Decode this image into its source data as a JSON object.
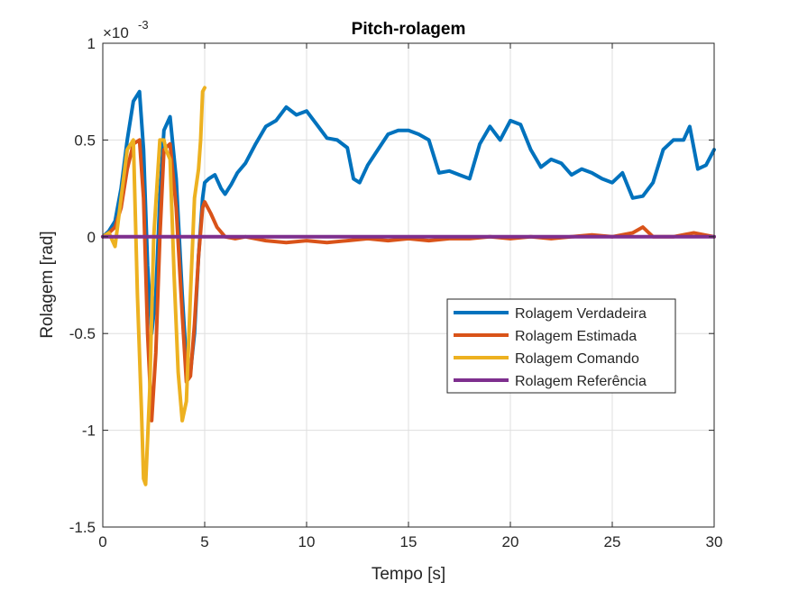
{
  "chart_data": {
    "type": "line",
    "title": "Pitch-rolagem",
    "xlabel": "Tempo [s]",
    "ylabel": "Rolagem [rad]",
    "y_exponent_label": "×10",
    "y_exponent_power": "-3",
    "xlim": [
      0,
      30
    ],
    "ylim": [
      -1.5,
      1
    ],
    "xticks": [
      0,
      5,
      10,
      15,
      20,
      25,
      30
    ],
    "xtick_labels": [
      "0",
      "5",
      "10",
      "15",
      "20",
      "25",
      "30"
    ],
    "yticks": [
      -1.5,
      -1,
      -0.5,
      0,
      0.5,
      1
    ],
    "ytick_labels": [
      "-1.5",
      "-1",
      "-0.5",
      "0",
      "0.5",
      "1"
    ],
    "grid": true,
    "legend_position": "center-right",
    "series": [
      {
        "name": "Rolagem Verdadeira",
        "color": "#0072BD",
        "x": [
          0,
          0.3,
          0.6,
          0.9,
          1.2,
          1.5,
          1.8,
          2.0,
          2.2,
          2.4,
          2.6,
          2.8,
          3.0,
          3.3,
          3.6,
          3.9,
          4.1,
          4.3,
          4.5,
          4.7,
          4.9,
          5.0,
          5.2,
          5.5,
          5.8,
          6.0,
          6.3,
          6.6,
          7.0,
          7.5,
          8.0,
          8.5,
          9.0,
          9.5,
          10.0,
          10.5,
          11.0,
          11.5,
          12.0,
          12.3,
          12.6,
          13.0,
          13.5,
          14.0,
          14.5,
          15.0,
          15.5,
          16.0,
          16.5,
          17.0,
          17.5,
          18.0,
          18.5,
          19.0,
          19.5,
          20.0,
          20.5,
          21.0,
          21.5,
          22.0,
          22.5,
          23.0,
          23.5,
          24.0,
          24.5,
          25.0,
          25.5,
          26.0,
          26.5,
          27.0,
          27.5,
          28.0,
          28.5,
          28.8,
          29.2,
          29.6,
          30.0
        ],
        "y": [
          0.0,
          0.03,
          0.08,
          0.25,
          0.5,
          0.7,
          0.75,
          0.45,
          -0.15,
          -0.5,
          -0.3,
          0.2,
          0.55,
          0.62,
          0.3,
          -0.3,
          -0.65,
          -0.7,
          -0.5,
          -0.1,
          0.2,
          0.28,
          0.3,
          0.32,
          0.25,
          0.22,
          0.27,
          0.33,
          0.38,
          0.48,
          0.57,
          0.6,
          0.67,
          0.63,
          0.65,
          0.58,
          0.51,
          0.5,
          0.46,
          0.3,
          0.28,
          0.37,
          0.45,
          0.53,
          0.55,
          0.55,
          0.53,
          0.5,
          0.33,
          0.34,
          0.32,
          0.3,
          0.48,
          0.57,
          0.5,
          0.6,
          0.58,
          0.45,
          0.36,
          0.4,
          0.38,
          0.32,
          0.35,
          0.33,
          0.3,
          0.28,
          0.33,
          0.2,
          0.21,
          0.28,
          0.45,
          0.5,
          0.5,
          0.57,
          0.35,
          0.37,
          0.45
        ]
      },
      {
        "name": "Rolagem Estimada",
        "color": "#D95319",
        "x": [
          0,
          0.3,
          0.6,
          0.9,
          1.2,
          1.5,
          1.8,
          2.0,
          2.2,
          2.4,
          2.6,
          2.8,
          3.0,
          3.3,
          3.6,
          3.9,
          4.1,
          4.3,
          4.5,
          4.7,
          4.9,
          5.0,
          5.3,
          5.6,
          6.0,
          6.5,
          7.0,
          8.0,
          9.0,
          10.0,
          11.0,
          12.0,
          13.0,
          14.0,
          15.0,
          16.0,
          17.0,
          18.0,
          19.0,
          20.0,
          21.0,
          22.0,
          23.0,
          24.0,
          25.0,
          26.0,
          26.5,
          27.0,
          28.0,
          29.0,
          30.0
        ],
        "y": [
          0.0,
          0.02,
          0.05,
          0.15,
          0.35,
          0.48,
          0.5,
          0.2,
          -0.5,
          -0.95,
          -0.6,
          0.0,
          0.45,
          0.48,
          0.15,
          -0.4,
          -0.75,
          -0.72,
          -0.45,
          -0.1,
          0.15,
          0.18,
          0.12,
          0.05,
          0.0,
          -0.01,
          0.0,
          -0.02,
          -0.03,
          -0.02,
          -0.03,
          -0.02,
          -0.01,
          -0.02,
          -0.01,
          -0.02,
          -0.01,
          -0.01,
          0.0,
          -0.01,
          0.0,
          -0.01,
          0.0,
          0.01,
          0.0,
          0.02,
          0.05,
          0.0,
          0.0,
          0.02,
          0.0
        ]
      },
      {
        "name": "Rolagem Comando",
        "color": "#EDB120",
        "x": [
          0,
          0.3,
          0.6,
          0.9,
          1.2,
          1.5,
          1.7,
          1.9,
          2.0,
          2.1,
          2.3,
          2.5,
          2.8,
          3.0,
          3.1,
          3.3,
          3.5,
          3.7,
          3.9,
          4.1,
          4.3,
          4.5,
          4.7,
          4.8,
          4.9,
          5.0
        ],
        "y": [
          0.0,
          0.02,
          -0.05,
          0.2,
          0.45,
          0.5,
          -0.3,
          -0.9,
          -1.25,
          -1.28,
          -0.8,
          0.0,
          0.5,
          0.5,
          0.45,
          0.4,
          -0.2,
          -0.7,
          -0.95,
          -0.85,
          -0.3,
          0.2,
          0.35,
          0.5,
          0.75,
          0.77
        ]
      },
      {
        "name": "Rolagem Referência",
        "color": "#7E2F8E",
        "x": [
          0,
          30
        ],
        "y": [
          0,
          0
        ]
      }
    ]
  }
}
